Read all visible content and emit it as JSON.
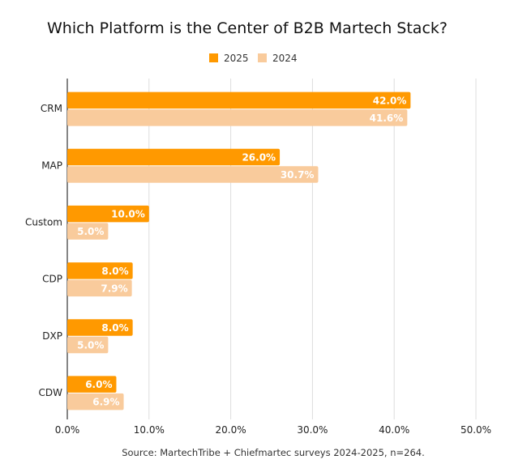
{
  "chart_data": {
    "type": "bar",
    "orientation": "horizontal",
    "title": "Which Platform is the Center of B2B Martech Stack?",
    "categories": [
      "CRM",
      "MAP",
      "Custom",
      "CDP",
      "DXP",
      "CDW"
    ],
    "series": [
      {
        "name": "2025",
        "color": "#FF9900",
        "values": [
          42.0,
          26.0,
          10.0,
          8.0,
          8.0,
          6.0
        ],
        "labels": [
          "42.0%",
          "26.0%",
          "10.0%",
          "8.0%",
          "8.0%",
          "6.0%"
        ]
      },
      {
        "name": "2024",
        "color": "#F9CB9C",
        "values": [
          41.6,
          30.7,
          5.0,
          7.9,
          5.0,
          6.9
        ],
        "labels": [
          "41.6%",
          "30.7%",
          "5.0%",
          "7.9%",
          "5.0%",
          "6.9%"
        ]
      }
    ],
    "xlim": [
      0,
      50
    ],
    "xticks": [
      "0.0%",
      "10.0%",
      "20.0%",
      "30.0%",
      "40.0%",
      "50.0%"
    ],
    "xlabel": "",
    "ylabel": "",
    "grid": true,
    "legend_position": "top",
    "source": "Source: MartechTribe + Chiefmartec surveys 2024-2025, n=264."
  }
}
